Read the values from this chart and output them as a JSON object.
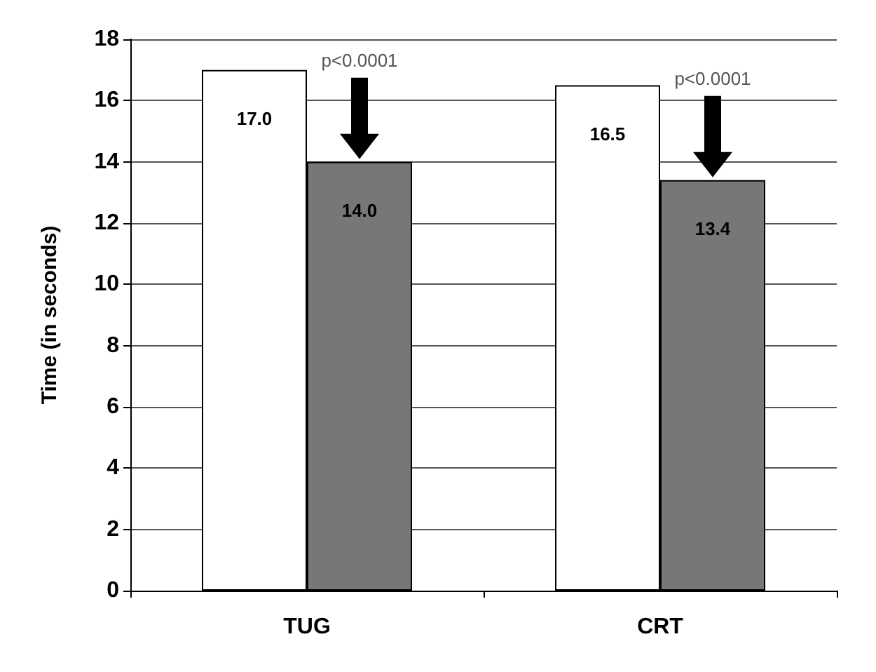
{
  "chart_data": {
    "type": "bar",
    "ylabel": "Time (in seconds)",
    "categories": [
      "TUG",
      "CRT"
    ],
    "series": [
      {
        "color": "#ffffff",
        "values": [
          17.0,
          16.5
        ],
        "value_labels": [
          "17.0",
          "16.5"
        ]
      },
      {
        "color": "#777777",
        "values": [
          14.0,
          13.4
        ],
        "value_labels": [
          "14.0",
          "13.4"
        ]
      }
    ],
    "ylim": [
      0,
      18
    ],
    "yticks": [
      0,
      2,
      4,
      6,
      8,
      10,
      12,
      14,
      16,
      18
    ],
    "grid": "y",
    "annotations": [
      "p<0.0001",
      "p<0.0001"
    ]
  }
}
